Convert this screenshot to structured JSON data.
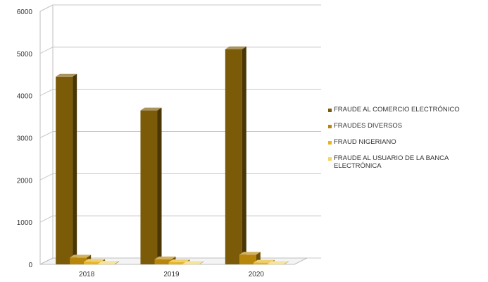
{
  "chart_data": {
    "type": "bar",
    "categories": [
      "2018",
      "2019",
      "2020"
    ],
    "series": [
      {
        "name": "FRAUDE AL COMERCIO ELECTRÓNICO",
        "values": [
          4450,
          3650,
          5100
        ],
        "color": "#7b5a08"
      },
      {
        "name": "FRAUDES DIVERSOS",
        "values": [
          160,
          120,
          230
        ],
        "color": "#b8860b"
      },
      {
        "name": "FRAUD NIGERIANO",
        "values": [
          60,
          50,
          40
        ],
        "color": "#e6b520"
      },
      {
        "name": "FRAUDE AL USUARIO DE LA BANCA ELECTRÓNICA",
        "values": [
          15,
          10,
          10
        ],
        "color": "#f2d66a"
      }
    ],
    "y_ticks": [
      "0",
      "1000",
      "2000",
      "3000",
      "4000",
      "5000",
      "6000"
    ],
    "ylim": [
      0,
      6000
    ],
    "grid": true,
    "legend": "right",
    "three_d": true
  }
}
